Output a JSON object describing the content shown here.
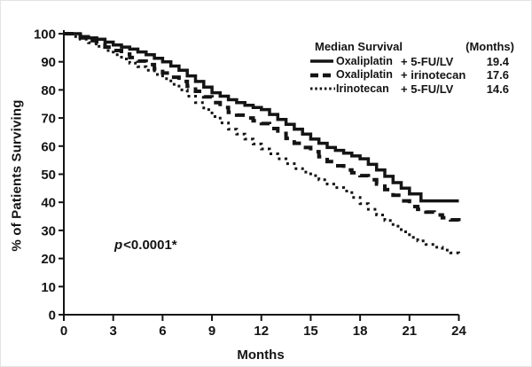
{
  "annotation": {
    "p_symbol": "p",
    "p_value": "<0.0001*"
  },
  "legend": {
    "title": "Median Survival",
    "months_header": "(Months)",
    "rows": [
      {
        "drug": "Oxaliplatin",
        "combo": "+ 5-FU/LV",
        "median": "19.4",
        "style": "solid"
      },
      {
        "drug": "Oxaliplatin",
        "combo": "+ irinotecan",
        "median": "17.6",
        "style": "dashed"
      },
      {
        "drug": "Irinotecan",
        "combo": "+ 5-FU/LV",
        "median": "14.6",
        "style": "dotted"
      }
    ]
  },
  "chart_data": {
    "type": "line",
    "subtype": "kaplan-meier-survival",
    "title": "",
    "xlabel": "Months",
    "ylabel": "% of Patients Surviving",
    "xlim": [
      0,
      24
    ],
    "ylim": [
      0,
      100
    ],
    "x_ticks": [
      0,
      3,
      6,
      9,
      12,
      15,
      18,
      21,
      24
    ],
    "y_ticks": [
      0,
      10,
      20,
      30,
      40,
      50,
      60,
      70,
      80,
      90,
      100
    ],
    "grid": false,
    "legend_position": "upper-right",
    "annotation": "p<0.0001*",
    "series": [
      {
        "name": "Oxaliplatin + 5-FU/LV",
        "median_months": 19.4,
        "line_style": "solid",
        "points": [
          [
            0,
            100
          ],
          [
            0.8,
            100
          ],
          [
            1,
            99
          ],
          [
            2,
            98
          ],
          [
            3,
            96
          ],
          [
            4,
            94.5
          ],
          [
            5,
            92.5
          ],
          [
            6,
            90
          ],
          [
            7,
            87
          ],
          [
            8,
            83
          ],
          [
            9,
            79
          ],
          [
            10,
            76.5
          ],
          [
            11,
            74.5
          ],
          [
            12,
            73
          ],
          [
            13,
            69.5
          ],
          [
            14,
            66
          ],
          [
            15,
            62.5
          ],
          [
            16,
            59.5
          ],
          [
            17,
            57.5
          ],
          [
            18,
            55.5
          ],
          [
            19,
            51.5
          ],
          [
            20,
            47
          ],
          [
            21,
            43
          ],
          [
            21.7,
            40.5
          ],
          [
            24,
            40.5
          ]
        ]
      },
      {
        "name": "Oxaliplatin + irinotecan",
        "median_months": 17.6,
        "line_style": "dashed",
        "points": [
          [
            0,
            100
          ],
          [
            0.6,
            99.5
          ],
          [
            1,
            98.5
          ],
          [
            2,
            96.5
          ],
          [
            3,
            94
          ],
          [
            4,
            91.5
          ],
          [
            5,
            89
          ],
          [
            6,
            86
          ],
          [
            7,
            83
          ],
          [
            8,
            79.5
          ],
          [
            9,
            75.5
          ],
          [
            10,
            72
          ],
          [
            11,
            70
          ],
          [
            12,
            68
          ],
          [
            13,
            64.5
          ],
          [
            14,
            61
          ],
          [
            15,
            58
          ],
          [
            16,
            54.5
          ],
          [
            17,
            51.5
          ],
          [
            18,
            49.5
          ],
          [
            19,
            46.5
          ],
          [
            20,
            42.5
          ],
          [
            21,
            38.5
          ],
          [
            22,
            36.5
          ],
          [
            23,
            34.5
          ],
          [
            24,
            33
          ]
        ]
      },
      {
        "name": "Irinotecan + 5-FU/LV",
        "median_months": 14.6,
        "line_style": "dotted",
        "points": [
          [
            0,
            100
          ],
          [
            1,
            98
          ],
          [
            2,
            95.5
          ],
          [
            3,
            92.5
          ],
          [
            4,
            89.5
          ],
          [
            5,
            87
          ],
          [
            6,
            84
          ],
          [
            7,
            80
          ],
          [
            8,
            75.5
          ],
          [
            9,
            70.5
          ],
          [
            10,
            66
          ],
          [
            11,
            62.5
          ],
          [
            12,
            59
          ],
          [
            13,
            55.5
          ],
          [
            14,
            52
          ],
          [
            15,
            49.5
          ],
          [
            16,
            46.5
          ],
          [
            17,
            44
          ],
          [
            18,
            39.5
          ],
          [
            19,
            35.5
          ],
          [
            20,
            31.5
          ],
          [
            21,
            27.5
          ],
          [
            22,
            25
          ],
          [
            23,
            23
          ],
          [
            24,
            21
          ]
        ]
      }
    ]
  }
}
